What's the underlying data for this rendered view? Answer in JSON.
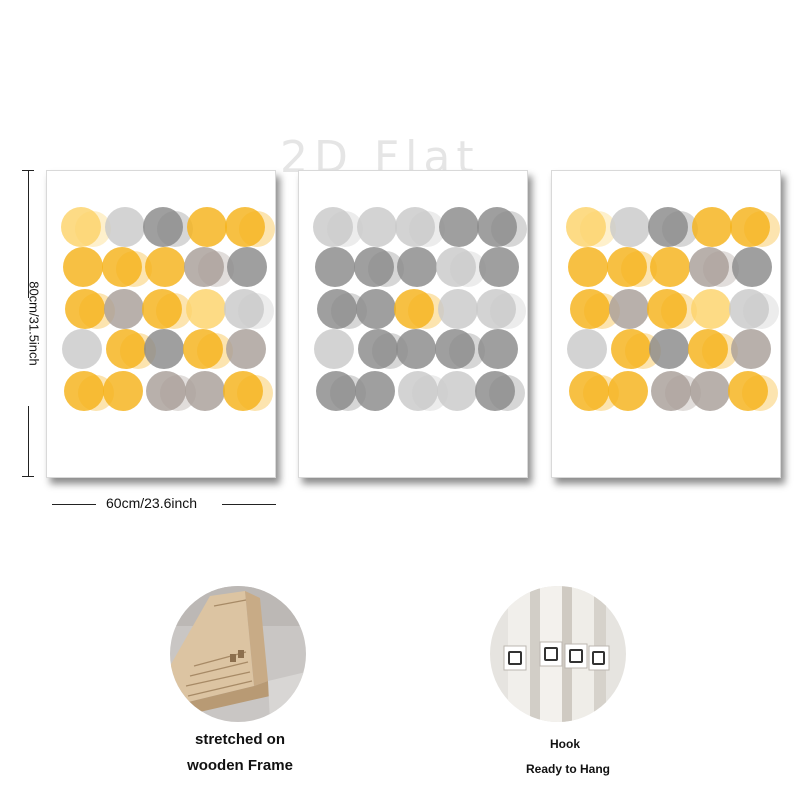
{
  "watermark": "2D Flat",
  "dimensions": {
    "height_label": "80cm/31.5inch",
    "width_label": "60cm/23.6inch"
  },
  "features": {
    "frame_caption_line1": "stretched on",
    "frame_caption_line2": "wooden Frame",
    "hook_caption_line1": "Hook",
    "hook_caption_line2": "Ready to Hang"
  },
  "colors": {
    "yellow": "#f5b21a",
    "yellow_light": "#fcd36a",
    "grey": "#8a8a8a",
    "grey_light": "#c9c9c9",
    "taupe": "#a89f98"
  }
}
